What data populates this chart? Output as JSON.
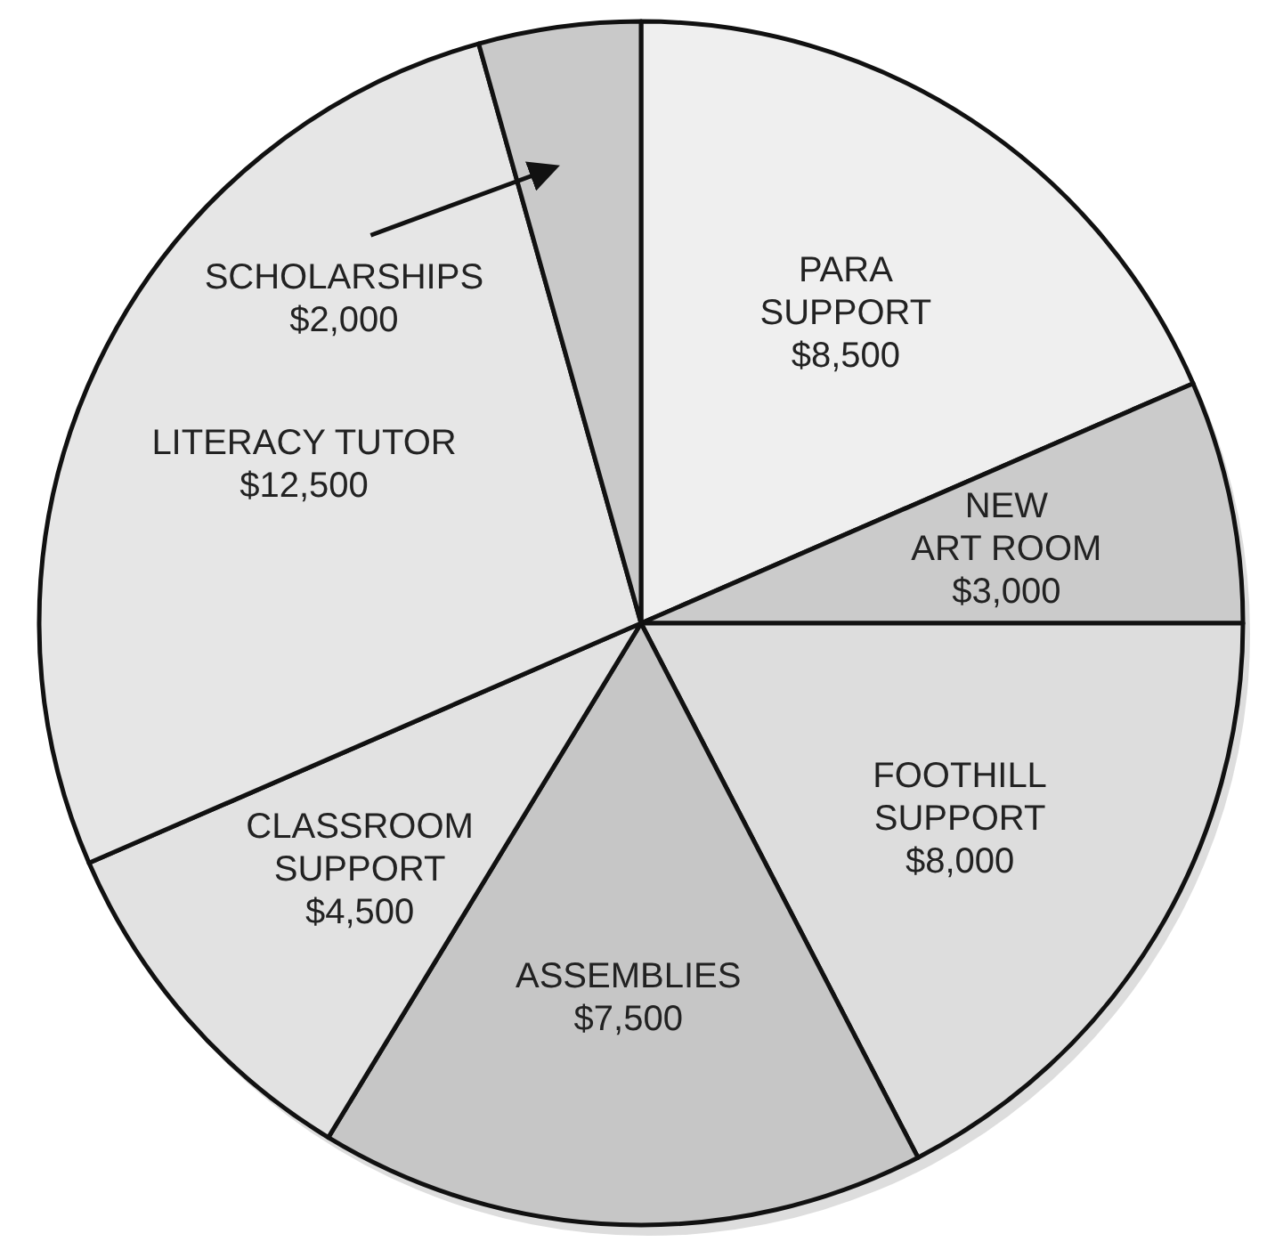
{
  "chart_data": {
    "type": "pie",
    "categories": [
      "PARA\nSUPPORT",
      "NEW\nART ROOM",
      "FOOTHILL\nSUPPORT",
      "ASSEMBLIES",
      "CLASSROOM\nSUPPORT",
      "LITERACY TUTOR",
      "SCHOLARSHIPS"
    ],
    "values": [
      8500,
      3000,
      8000,
      7500,
      4500,
      12500,
      2000
    ],
    "value_labels": [
      "$8,500",
      "$3,000",
      "$8,000",
      "$7,500",
      "$4,500",
      "$12,500",
      "$2,000"
    ],
    "colors": [
      "#efefef",
      "#cbcbcb",
      "#dddddd",
      "#c6c6c6",
      "#e2e2e2",
      "#e6e6e6",
      "#c9c9c9"
    ]
  }
}
